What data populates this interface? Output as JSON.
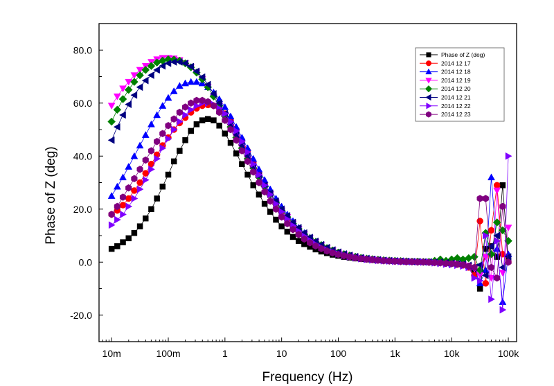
{
  "chart_data": {
    "type": "line",
    "title": "",
    "xlabel": "Frequency (Hz)",
    "ylabel": "Phase of Z (deg)",
    "xscale": "log",
    "xlim": [
      0.006,
      140000
    ],
    "ylim": [
      -30,
      90
    ],
    "x_ticks": [
      0.01,
      0.1,
      1,
      10,
      100,
      1000,
      10000,
      100000
    ],
    "x_tick_labels": [
      "10m",
      "100m",
      "1",
      "10",
      "100",
      "1k",
      "10k",
      "100k"
    ],
    "y_ticks": [
      -20,
      0,
      20,
      40,
      60,
      80
    ],
    "y_tick_labels": [
      "-20.0",
      "0.0",
      "20.0",
      "40.0",
      "60.0",
      "80.0"
    ],
    "grid": false,
    "legend_position": "top-right",
    "x_log10_start": -2,
    "x_log10_step": 0.1,
    "series": [
      {
        "name": "Phase of Z (deg)",
        "color": "#000000",
        "marker": "square",
        "values": [
          5,
          6,
          7.5,
          9,
          11,
          13.5,
          16.5,
          20,
          24,
          28.5,
          33,
          38,
          42,
          46,
          49.5,
          52,
          53.5,
          54,
          53.5,
          51.5,
          48.5,
          45,
          41,
          37,
          33,
          29,
          25.5,
          22,
          19,
          16,
          13.5,
          11.5,
          9.5,
          8,
          6.8,
          5.8,
          4.8,
          4,
          3.4,
          2.8,
          2.4,
          2,
          1.7,
          1.4,
          1.2,
          1,
          0.8,
          0.7,
          0.6,
          0.5,
          0.4,
          0.3,
          0.3,
          0.2,
          0.2,
          0.1,
          0.1,
          0,
          0,
          -0.2,
          -0.5,
          -0.8,
          -1,
          -1.5,
          -3,
          -10,
          5,
          6,
          2,
          29,
          0.5
        ]
      },
      {
        "name": "2014 12 17",
        "color": "#ff0000",
        "marker": "circle",
        "values": [
          18,
          19.5,
          21.5,
          24,
          27,
          30,
          33.5,
          37,
          40.5,
          44,
          47,
          50,
          52.5,
          54.5,
          56.5,
          58,
          59,
          59.3,
          59,
          58,
          56,
          53.5,
          50,
          46,
          42,
          37.5,
          33.5,
          29.5,
          25.5,
          22,
          19,
          16,
          13.5,
          11.5,
          9.5,
          8,
          6.7,
          5.6,
          4.6,
          3.8,
          3.1,
          2.6,
          2.1,
          1.7,
          1.4,
          1.1,
          0.9,
          0.7,
          0.6,
          0.5,
          0.4,
          0.3,
          0.2,
          0.2,
          0.1,
          0.1,
          0,
          0,
          0,
          -0.3,
          -0.6,
          -0.9,
          -1.2,
          -2,
          -5,
          15.5,
          -8,
          12,
          29,
          3,
          0
        ]
      },
      {
        "name": "2014 12 18",
        "color": "#0000ff",
        "marker": "triangle-up",
        "values": [
          25,
          28.5,
          32,
          36,
          40,
          44,
          48,
          52,
          55.5,
          59,
          62,
          64.5,
          66.5,
          67.5,
          68,
          68,
          67.5,
          66,
          64,
          61.5,
          58.5,
          55,
          51,
          47,
          43,
          39,
          35,
          31,
          27.5,
          24,
          21,
          18,
          15.5,
          13,
          11,
          9.3,
          7.8,
          6.5,
          5.4,
          4.5,
          3.7,
          3.1,
          2.5,
          2.1,
          1.7,
          1.4,
          1.1,
          0.9,
          0.7,
          0.6,
          0.5,
          0.4,
          0.3,
          0.2,
          0.2,
          0.1,
          0.1,
          0,
          0.5,
          0,
          -0.5,
          -0.6,
          1,
          -1.5,
          -2,
          -8,
          -3,
          32,
          5,
          -15,
          3
        ]
      },
      {
        "name": "2014 12 19",
        "color": "#ff00ff",
        "marker": "triangle-down",
        "values": [
          59,
          62.5,
          65.5,
          68,
          70.5,
          72.5,
          74,
          75.5,
          76.5,
          77,
          77,
          76.8,
          76.2,
          75,
          73.5,
          71.5,
          69,
          66,
          62.5,
          59,
          55,
          51,
          47,
          43,
          39,
          35.5,
          32,
          28.5,
          25.5,
          22.5,
          19.5,
          17,
          14.5,
          12.5,
          10.5,
          9,
          7.6,
          6.4,
          5.3,
          4.4,
          3.6,
          3,
          2.5,
          2,
          1.6,
          1.3,
          1.1,
          0.9,
          0.7,
          0.6,
          0.5,
          0.4,
          0.3,
          0.2,
          0.1,
          0.1,
          0,
          0,
          0,
          -0.2,
          -0.4,
          -0.6,
          -1,
          -1.5,
          -2.5,
          -5,
          2,
          -6,
          27,
          -4,
          13
        ]
      },
      {
        "name": "2014 12 20",
        "color": "#008000",
        "marker": "diamond",
        "values": [
          53,
          57.5,
          61.5,
          65,
          68,
          70.5,
          72.5,
          74,
          75.3,
          76,
          76.5,
          76.4,
          76,
          75,
          73.5,
          71.5,
          69,
          66,
          62.5,
          59,
          55,
          51,
          47,
          43,
          39,
          35.5,
          32,
          28.5,
          25.5,
          22.5,
          19.5,
          17,
          14.5,
          12.5,
          10.5,
          9,
          7.6,
          6.4,
          5.3,
          4.4,
          3.6,
          3,
          2.5,
          2,
          1.6,
          1.3,
          1.1,
          0.9,
          0.7,
          0.6,
          0.5,
          0.4,
          0.3,
          0.2,
          0.2,
          0.1,
          0.1,
          0.5,
          1,
          0.5,
          1,
          1.5,
          1,
          1.5,
          2,
          -3,
          11,
          3,
          15,
          12,
          8
        ]
      },
      {
        "name": "2014 12 21",
        "color": "#000080",
        "marker": "triangle-left",
        "values": [
          46,
          51,
          55.5,
          59.5,
          63,
          66,
          68.5,
          70.5,
          72.5,
          74,
          75,
          75.5,
          75.5,
          75,
          73.8,
          72,
          69.8,
          67,
          63.5,
          60,
          56,
          52,
          48,
          44,
          40,
          36,
          32.5,
          29,
          26,
          23,
          20,
          17.5,
          15,
          13,
          11,
          9.3,
          7.9,
          6.6,
          5.5,
          4.6,
          3.8,
          3.1,
          2.6,
          2.1,
          1.7,
          1.4,
          1.1,
          0.9,
          0.7,
          0.6,
          0.5,
          0.4,
          0.3,
          0.2,
          0.2,
          0.1,
          0.1,
          0,
          0,
          -0.2,
          -0.4,
          -0.6,
          -0.8,
          -1.2,
          -2,
          -1,
          -5,
          6,
          10,
          -2,
          2
        ]
      },
      {
        "name": "2014 12 22",
        "color": "#8000ff",
        "marker": "triangle-right",
        "values": [
          14,
          16,
          18,
          21,
          24,
          27.5,
          31,
          35,
          39,
          43,
          46.5,
          50,
          53,
          55.5,
          57.5,
          59,
          60,
          60,
          59.5,
          58,
          56,
          53,
          49.5,
          45.5,
          41.5,
          37,
          33,
          29,
          25.5,
          22,
          19,
          16.2,
          13.8,
          11.7,
          9.8,
          8.2,
          6.8,
          5.6,
          4.6,
          3.8,
          3.1,
          2.5,
          2,
          1.6,
          1.3,
          1,
          0.8,
          0.6,
          0.5,
          0.4,
          0.3,
          0.2,
          0.2,
          0.1,
          0.1,
          0,
          0,
          -0.3,
          -0.5,
          -0.8,
          -1,
          -1.2,
          -1.5,
          -2,
          -6,
          -7,
          10,
          -14,
          8,
          -18,
          40
        ]
      },
      {
        "name": "2014 12 23",
        "color": "#800080",
        "marker": "hexagon",
        "values": [
          18,
          21,
          24.5,
          28,
          31.5,
          35,
          38.5,
          42,
          45.5,
          48.5,
          51.5,
          54,
          56.5,
          58.5,
          60,
          61,
          61,
          60.5,
          59,
          56.5,
          53.5,
          50,
          46,
          42,
          38,
          34,
          30,
          26.5,
          23,
          20,
          17,
          14.5,
          12.3,
          10.4,
          8.7,
          7.3,
          6.1,
          5.1,
          4.2,
          3.5,
          2.9,
          2.4,
          2,
          1.6,
          1.3,
          1.1,
          0.9,
          0.7,
          0.5,
          0.4,
          0.3,
          0.2,
          0.1,
          0.1,
          0,
          0,
          -0.1,
          -0.2,
          -0.3,
          -0.5,
          -0.6,
          -0.8,
          -1,
          -1.5,
          -2,
          24,
          24,
          -2,
          -6,
          21,
          0
        ]
      }
    ]
  }
}
